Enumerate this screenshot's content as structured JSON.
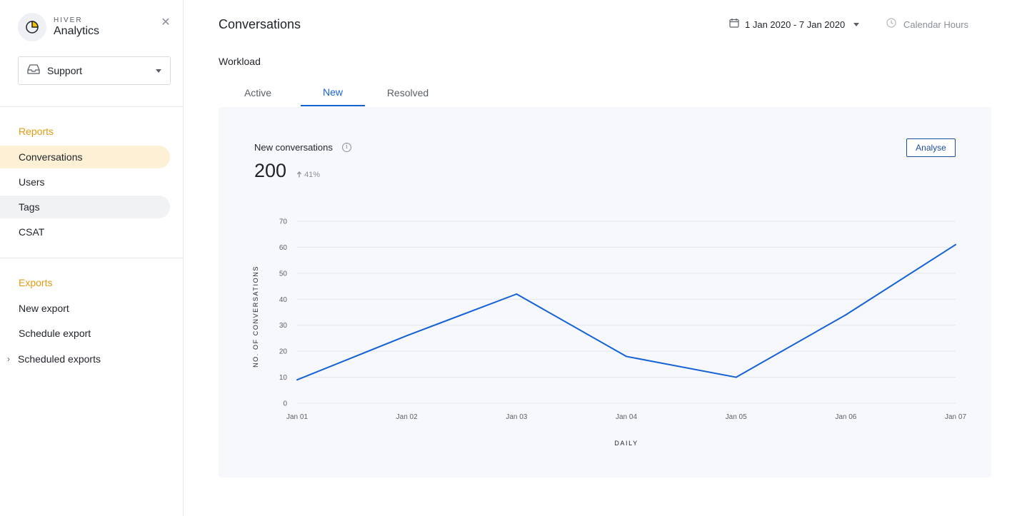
{
  "brand": {
    "small": "HIVER",
    "name": "Analytics"
  },
  "inbox": {
    "selected": "Support"
  },
  "sidebar": {
    "reports_title": "Reports",
    "reports": [
      {
        "label": "Conversations"
      },
      {
        "label": "Users"
      },
      {
        "label": "Tags"
      },
      {
        "label": "CSAT"
      }
    ],
    "exports_title": "Exports",
    "exports": [
      {
        "label": "New export"
      },
      {
        "label": "Schedule export"
      },
      {
        "label": "Scheduled exports"
      }
    ]
  },
  "header": {
    "title": "Conversations",
    "date_range": "1 Jan 2020 - 7 Jan 2020",
    "calendar_hours": "Calendar Hours"
  },
  "workload": {
    "title": "Workload",
    "tabs": [
      {
        "label": "Active"
      },
      {
        "label": "New"
      },
      {
        "label": "Resolved"
      }
    ],
    "active_tab": "New"
  },
  "card": {
    "title": "New conversations",
    "metric_value": "200",
    "metric_change": "41%",
    "analyse_label": "Analyse"
  },
  "colors": {
    "accent": "#1562d6",
    "section": "#e39a12",
    "active_bg": "#fdf0d5"
  },
  "chart_data": {
    "type": "line",
    "categories": [
      "Jan 01",
      "Jan 02",
      "Jan 03",
      "Jan 04",
      "Jan 05",
      "Jan 06",
      "Jan 07"
    ],
    "series": [
      {
        "values": [
          9,
          26,
          42,
          18,
          10,
          34,
          61
        ]
      }
    ],
    "xlabel": "DAILY",
    "ylabel": "NO. OF CONVERSATIONS",
    "ylim": [
      0,
      70
    ],
    "yticks": [
      0,
      10,
      20,
      30,
      40,
      50,
      60,
      70
    ],
    "grid": true
  }
}
